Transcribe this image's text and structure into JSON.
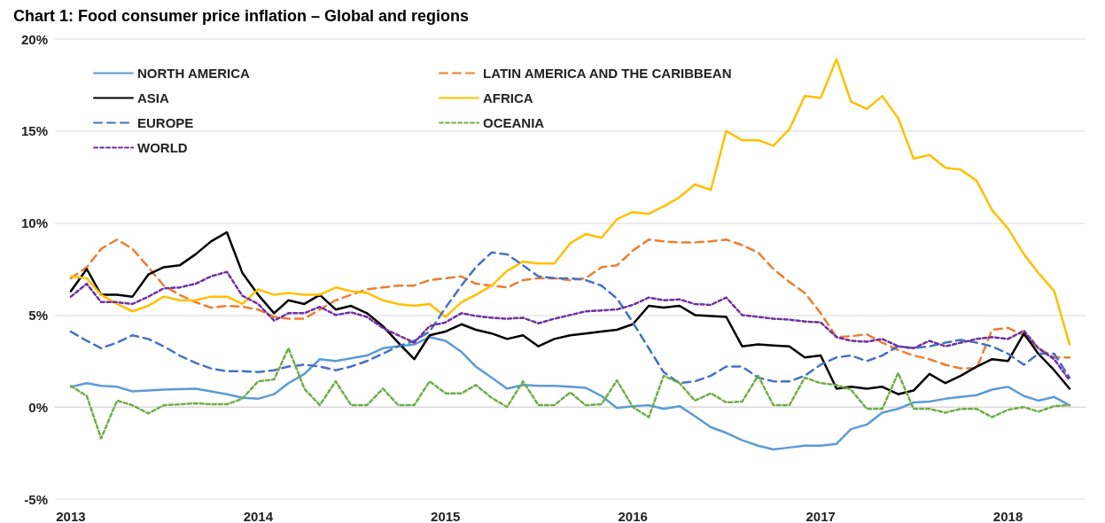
{
  "chart_data": {
    "type": "line",
    "title": "Chart 1: Food consumer price inflation – Global and regions",
    "x": [
      "2013-01",
      "2013-02",
      "2013-03",
      "2013-04",
      "2013-05",
      "2013-06",
      "2013-07",
      "2013-08",
      "2013-09",
      "2013-10",
      "2013-11",
      "2013-12",
      "2014-01",
      "2014-02",
      "2014-03",
      "2014-04",
      "2014-05",
      "2014-06",
      "2014-07",
      "2014-08",
      "2014-09",
      "2014-10",
      "2014-11",
      "2014-12",
      "2015-01",
      "2015-02",
      "2015-03",
      "2015-04",
      "2015-05",
      "2015-06",
      "2015-07",
      "2015-08",
      "2015-09",
      "2015-10",
      "2015-11",
      "2015-12",
      "2016-01",
      "2016-02",
      "2016-03",
      "2016-04",
      "2016-05",
      "2016-06",
      "2016-07",
      "2016-08",
      "2016-09",
      "2016-10",
      "2016-11",
      "2016-12",
      "2017-01",
      "2017-02",
      "2017-03",
      "2017-04",
      "2017-05",
      "2017-06",
      "2017-07",
      "2017-08",
      "2017-09",
      "2017-10",
      "2017-11",
      "2017-12",
      "2018-01",
      "2018-02",
      "2018-03",
      "2018-04",
      "2018-05"
    ],
    "series": [
      {
        "name": "NORTH AMERICA",
        "color": "#5b9bd5",
        "line_style": "solid",
        "values": [
          1.1,
          1.3,
          1.15,
          1.1,
          0.85,
          0.9,
          0.95,
          0.97,
          1.0,
          0.85,
          0.7,
          0.5,
          0.45,
          0.7,
          1.3,
          1.8,
          2.6,
          2.5,
          2.65,
          2.8,
          3.2,
          3.3,
          3.4,
          3.8,
          3.6,
          3.0,
          2.2,
          1.6,
          1.0,
          1.2,
          1.15,
          1.15,
          1.1,
          1.05,
          0.6,
          -0.05,
          0.05,
          0.1,
          -0.1,
          0.05,
          -0.5,
          -1.1,
          -1.4,
          -1.8,
          -2.1,
          -2.3,
          -2.2,
          -2.1,
          -2.1,
          -2.0,
          -1.2,
          -0.95,
          -0.3,
          -0.1,
          0.25,
          0.3,
          0.45,
          0.55,
          0.65,
          0.95,
          1.1,
          0.6,
          0.35,
          0.55,
          0.1
        ]
      },
      {
        "name": "LATIN AMERICA AND THE CARIBBEAN",
        "color": "#ed7d31",
        "line_style": "dashed",
        "values": [
          7.0,
          7.6,
          8.6,
          9.1,
          8.6,
          7.6,
          6.6,
          6.1,
          5.7,
          5.4,
          5.5,
          5.45,
          5.3,
          4.9,
          4.8,
          4.8,
          5.3,
          5.8,
          6.1,
          6.4,
          6.5,
          6.6,
          6.6,
          6.9,
          7.0,
          7.1,
          6.7,
          6.6,
          6.5,
          6.9,
          7.0,
          7.0,
          6.9,
          7.0,
          7.6,
          7.7,
          8.5,
          9.1,
          9.0,
          8.95,
          8.95,
          9.0,
          9.1,
          8.8,
          8.4,
          7.5,
          6.8,
          6.2,
          5.1,
          3.8,
          3.85,
          3.95,
          3.5,
          3.1,
          2.8,
          2.6,
          2.3,
          2.1,
          2.1,
          4.2,
          4.3,
          3.9,
          3.2,
          2.7,
          2.7
        ]
      },
      {
        "name": "ASIA",
        "color": "#000000",
        "line_style": "solid",
        "values": [
          6.3,
          7.5,
          6.1,
          6.1,
          6.0,
          7.2,
          7.6,
          7.7,
          8.3,
          9.0,
          9.5,
          7.3,
          6.1,
          5.1,
          5.8,
          5.6,
          6.1,
          5.3,
          5.5,
          5.1,
          4.4,
          3.5,
          2.6,
          3.9,
          4.1,
          4.5,
          4.2,
          4.0,
          3.7,
          3.9,
          3.3,
          3.7,
          3.9,
          4.0,
          4.1,
          4.2,
          4.5,
          5.5,
          5.4,
          5.5,
          5.0,
          4.95,
          4.9,
          3.3,
          3.4,
          3.35,
          3.3,
          2.7,
          2.8,
          1.0,
          1.1,
          1.0,
          1.1,
          0.7,
          0.9,
          1.8,
          1.3,
          1.7,
          2.2,
          2.6,
          2.5,
          4.0,
          2.9,
          2.0,
          1.0
        ]
      },
      {
        "name": "AFRICA",
        "color": "#ffc000",
        "line_style": "solid",
        "values": [
          7.1,
          7.0,
          6.1,
          5.6,
          5.2,
          5.5,
          6.0,
          5.8,
          5.8,
          6.0,
          6.0,
          5.6,
          6.4,
          6.1,
          6.2,
          6.1,
          6.1,
          6.5,
          6.3,
          6.2,
          5.8,
          5.6,
          5.5,
          5.6,
          4.9,
          5.7,
          6.1,
          6.6,
          7.4,
          7.9,
          7.8,
          7.8,
          8.9,
          9.4,
          9.2,
          10.2,
          10.6,
          10.5,
          10.9,
          11.4,
          12.1,
          11.8,
          15.0,
          14.5,
          14.5,
          14.2,
          15.1,
          16.9,
          16.8,
          18.9,
          16.6,
          16.2,
          16.9,
          15.7,
          13.5,
          13.7,
          13.0,
          12.9,
          12.3,
          10.7,
          9.7,
          8.3,
          7.3,
          6.3,
          3.4
        ]
      },
      {
        "name": "EUROPE",
        "color": "#4472c4",
        "line_style": "dashed",
        "values": [
          4.1,
          3.6,
          3.2,
          3.5,
          3.9,
          3.7,
          3.3,
          2.8,
          2.4,
          2.1,
          1.95,
          1.95,
          1.9,
          2.0,
          2.2,
          2.3,
          2.2,
          2.0,
          2.2,
          2.5,
          2.9,
          3.3,
          3.6,
          4.1,
          5.4,
          6.6,
          7.6,
          8.4,
          8.3,
          7.7,
          7.1,
          7.0,
          7.0,
          6.9,
          6.6,
          5.9,
          4.6,
          3.2,
          1.9,
          1.3,
          1.4,
          1.7,
          2.2,
          2.2,
          1.6,
          1.4,
          1.4,
          1.7,
          2.3,
          2.7,
          2.8,
          2.5,
          2.8,
          3.3,
          3.2,
          3.3,
          3.5,
          3.65,
          3.5,
          3.3,
          2.9,
          2.3,
          2.9,
          2.9,
          1.6
        ]
      },
      {
        "name": "OCEANIA",
        "color": "#70ad47",
        "line_style": "dotted",
        "values": [
          1.15,
          0.6,
          -1.7,
          0.35,
          0.1,
          -0.35,
          0.1,
          0.15,
          0.2,
          0.15,
          0.15,
          0.45,
          1.4,
          1.5,
          3.2,
          1.0,
          0.1,
          1.4,
          0.1,
          0.1,
          1.0,
          0.1,
          0.1,
          1.4,
          0.75,
          0.75,
          1.2,
          0.5,
          0.0,
          1.4,
          0.1,
          0.1,
          0.8,
          0.1,
          0.15,
          1.45,
          0.0,
          -0.55,
          1.7,
          1.3,
          0.35,
          0.75,
          0.25,
          0.3,
          1.7,
          0.1,
          0.1,
          1.6,
          1.3,
          1.2,
          0.95,
          -0.1,
          -0.1,
          1.85,
          -0.1,
          -0.1,
          -0.3,
          -0.1,
          -0.1,
          -0.55,
          -0.15,
          0.0,
          -0.25,
          0.05,
          0.1
        ]
      },
      {
        "name": "WORLD",
        "color": "#7030a0",
        "line_style": "dotted",
        "values": [
          6.0,
          6.7,
          5.7,
          5.7,
          5.6,
          6.0,
          6.45,
          6.5,
          6.7,
          7.1,
          7.35,
          6.05,
          5.6,
          4.7,
          5.1,
          5.1,
          5.45,
          5.0,
          5.15,
          4.9,
          4.3,
          3.9,
          3.5,
          4.4,
          4.6,
          5.1,
          4.95,
          4.85,
          4.8,
          4.85,
          4.55,
          4.8,
          5.0,
          5.2,
          5.25,
          5.3,
          5.55,
          5.95,
          5.8,
          5.85,
          5.6,
          5.55,
          5.95,
          5.0,
          4.9,
          4.8,
          4.75,
          4.65,
          4.6,
          3.8,
          3.6,
          3.55,
          3.7,
          3.3,
          3.2,
          3.6,
          3.3,
          3.5,
          3.7,
          3.8,
          3.7,
          4.15,
          3.2,
          2.6,
          1.45
        ]
      }
    ],
    "xlim": [
      "2012-12",
      "2018-06"
    ],
    "xticks": [
      {
        "value": "2013-01",
        "label": "2013"
      },
      {
        "value": "2014-01",
        "label": "2014"
      },
      {
        "value": "2015-01",
        "label": "2015"
      },
      {
        "value": "2016-01",
        "label": "2016"
      },
      {
        "value": "2017-01",
        "label": "2017"
      },
      {
        "value": "2018-01",
        "label": "2018"
      }
    ],
    "ylim": [
      -5,
      20
    ],
    "yticks": [
      {
        "value": -5,
        "label": "-5%"
      },
      {
        "value": 0,
        "label": "0%"
      },
      {
        "value": 5,
        "label": "5%"
      },
      {
        "value": 10,
        "label": "10%"
      },
      {
        "value": 15,
        "label": "15%"
      },
      {
        "value": 20,
        "label": "20%"
      }
    ],
    "grid": "y",
    "legend": "top left",
    "marker": "none"
  }
}
